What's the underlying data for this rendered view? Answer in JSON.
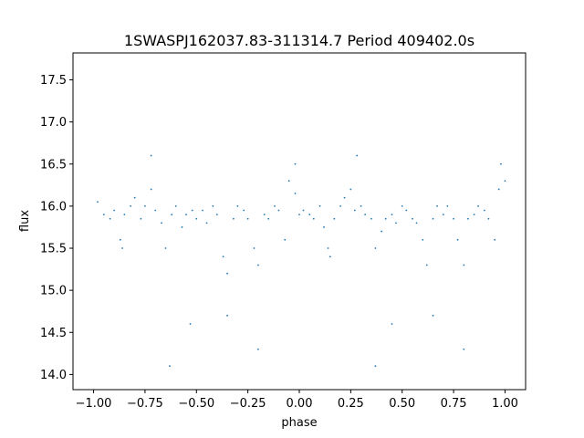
{
  "chart_data": {
    "type": "scatter",
    "title": "1SWASPJ162037.83-311314.7 Period 409402.0s",
    "xlabel": "phase",
    "ylabel": "flux",
    "xlim": [
      -1.1,
      1.1
    ],
    "ylim": [
      13.82,
      17.82
    ],
    "xticks": [
      -1.0,
      -0.75,
      -0.5,
      -0.25,
      0.0,
      0.25,
      0.5,
      0.75,
      1.0
    ],
    "xtick_labels": [
      "−1.00",
      "−0.75",
      "−0.50",
      "−0.25",
      "0.00",
      "0.25",
      "0.50",
      "0.75",
      "1.00"
    ],
    "yticks": [
      14.0,
      14.5,
      15.0,
      15.5,
      16.0,
      16.5,
      17.0,
      17.5
    ],
    "ytick_labels": [
      "14.0",
      "14.5",
      "15.0",
      "15.5",
      "16.0",
      "16.5",
      "17.0",
      "17.5"
    ],
    "grid": false,
    "marker_color": "#1f77b4",
    "marker": "tiny dots",
    "series": [
      {
        "x": [
          -0.98,
          -0.95,
          -0.92,
          -0.9,
          -0.87,
          -0.85,
          -0.82,
          -0.8,
          -0.77,
          -0.75,
          -0.72,
          -0.7,
          -0.67,
          -0.65,
          -0.62,
          -0.6,
          -0.57,
          -0.55,
          -0.52,
          -0.5,
          -0.47,
          -0.45,
          -0.42,
          -0.4,
          -0.37,
          -0.35,
          -0.32,
          -0.3,
          -0.27,
          -0.25,
          -0.22,
          -0.2,
          -0.17,
          -0.15,
          -0.12,
          -0.1,
          -0.07,
          -0.05,
          -0.02,
          0.0,
          0.02,
          0.05,
          0.07,
          0.1,
          0.12,
          0.15,
          0.17,
          0.2,
          0.22,
          0.25,
          0.27,
          0.3,
          0.32,
          0.35,
          0.37,
          0.4,
          0.42,
          0.45,
          0.47,
          0.5,
          0.52,
          0.55,
          0.57,
          0.6,
          0.62,
          0.65,
          0.67,
          0.7,
          0.72,
          0.75,
          0.77,
          0.8,
          0.82,
          0.85,
          0.87,
          0.9,
          0.92,
          0.95,
          0.97,
          1.0,
          -0.63,
          0.37,
          -0.2,
          0.8,
          -0.53,
          0.45,
          -0.35,
          0.65,
          -0.86,
          0.14,
          -0.72,
          0.28,
          -0.02,
          0.98
        ],
        "y": [
          16.05,
          15.9,
          15.85,
          15.95,
          15.6,
          15.9,
          16.0,
          16.1,
          15.85,
          16.0,
          16.2,
          15.95,
          15.8,
          15.5,
          15.9,
          16.0,
          15.75,
          15.9,
          15.95,
          15.85,
          15.95,
          15.8,
          16.0,
          15.9,
          15.4,
          15.2,
          15.85,
          16.0,
          15.95,
          15.85,
          15.5,
          15.3,
          15.9,
          15.85,
          16.0,
          15.95,
          15.6,
          16.3,
          16.15,
          15.9,
          15.95,
          15.9,
          15.85,
          16.0,
          15.75,
          15.4,
          15.85,
          16.0,
          16.1,
          16.2,
          15.95,
          16.0,
          15.9,
          15.85,
          15.5,
          15.7,
          15.85,
          15.9,
          15.8,
          16.0,
          15.95,
          15.85,
          15.8,
          15.6,
          15.3,
          15.85,
          16.0,
          15.9,
          16.0,
          15.85,
          15.6,
          15.3,
          15.85,
          15.9,
          16.0,
          15.95,
          15.85,
          15.6,
          16.2,
          16.3,
          14.1,
          14.1,
          14.3,
          14.3,
          14.6,
          14.6,
          14.7,
          14.7,
          15.5,
          15.5,
          16.6,
          16.6,
          16.5,
          16.5
        ]
      }
    ]
  }
}
